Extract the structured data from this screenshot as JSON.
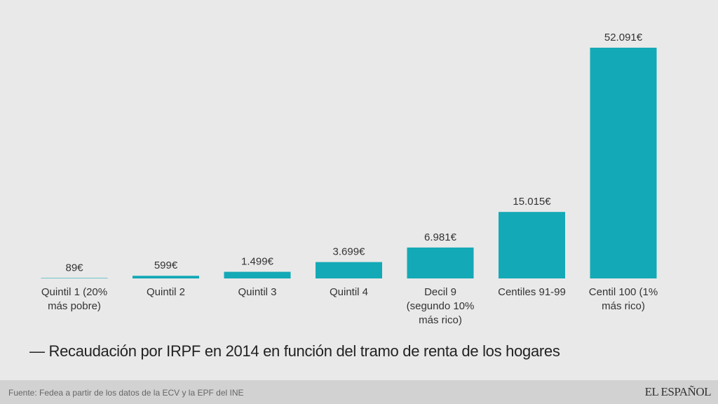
{
  "chart_data": {
    "type": "bar",
    "title": "— Recaudación por IRPF en 2014 en función del tramo de renta de los hogares",
    "categories": [
      [
        "Quintil 1 (20%",
        "más pobre)"
      ],
      [
        "Quintil 2"
      ],
      [
        "Quintil 3"
      ],
      [
        "Quintil 4"
      ],
      [
        "Decil 9",
        "(segundo 10%",
        "más rico)"
      ],
      [
        "Centiles 91-99"
      ],
      [
        "Centil 100 (1%",
        "más rico)"
      ]
    ],
    "values": [
      89,
      599,
      1499,
      3699,
      6981,
      15015,
      52091
    ],
    "data_labels": [
      "89€",
      "599€",
      "1.499€",
      "3.699€",
      "6.981€",
      "15.015€",
      "52.091€"
    ],
    "xlabel": "",
    "ylabel": "",
    "ylim": [
      0,
      52091
    ],
    "grid": false,
    "bar_color": "#14a9b6"
  },
  "footer": {
    "source": "Fuente: Fedea a partir de los datos de la ECV y la EPF del INE",
    "logo": "EL ESPAÑOL"
  }
}
